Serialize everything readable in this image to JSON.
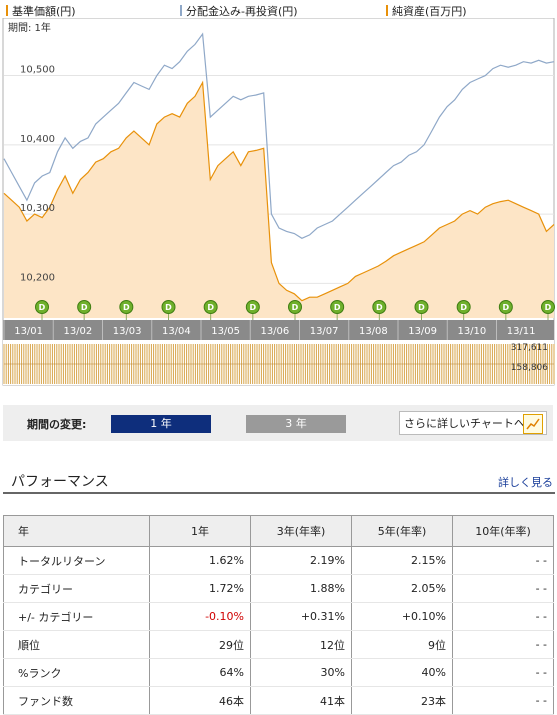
{
  "legend": [
    {
      "label": "基準価額(円)",
      "color": "#e8910a"
    },
    {
      "label": "分配金込み-再投資(円)",
      "color": "#8fa8c8"
    },
    {
      "label": "純資産(百万円)",
      "color": "#e8910a"
    }
  ],
  "chart_data": {
    "type": "line",
    "period_label": "期間: 1年",
    "y_ticks": [
      "10,500",
      "10,400",
      "10,300",
      "10,200"
    ],
    "ylim": [
      10150,
      10560
    ],
    "months": [
      "13/01",
      "13/02",
      "13/03",
      "13/04",
      "13/05",
      "13/06",
      "13/07",
      "13/08",
      "13/09",
      "13/10",
      "13/11"
    ],
    "dividend_marker": "D",
    "dividend_count": 13,
    "series": [
      {
        "name": "基準価額(円)",
        "color": "#e8910a",
        "values": [
          10330,
          10320,
          10310,
          10290,
          10300,
          10295,
          10310,
          10335,
          10355,
          10330,
          10350,
          10360,
          10375,
          10380,
          10390,
          10395,
          10410,
          10420,
          10410,
          10400,
          10430,
          10440,
          10445,
          10440,
          10460,
          10470,
          10490,
          10350,
          10370,
          10380,
          10390,
          10370,
          10390,
          10392,
          10395,
          10230,
          10200,
          10190,
          10185,
          10175,
          10180,
          10180,
          10185,
          10190,
          10195,
          10200,
          10210,
          10215,
          10220,
          10225,
          10232,
          10240,
          10245,
          10250,
          10255,
          10260,
          10270,
          10280,
          10285,
          10290,
          10300,
          10305,
          10300,
          10310,
          10315,
          10318,
          10320,
          10315,
          10310,
          10305,
          10300,
          10275,
          10285
        ]
      },
      {
        "name": "分配金込み-再投資(円)",
        "color": "#8fa8c8",
        "values": [
          10380,
          10360,
          10340,
          10320,
          10345,
          10355,
          10360,
          10390,
          10410,
          10395,
          10405,
          10410,
          10430,
          10440,
          10450,
          10460,
          10475,
          10490,
          10485,
          10480,
          10500,
          10515,
          10510,
          10520,
          10535,
          10545,
          10560,
          10440,
          10450,
          10460,
          10470,
          10465,
          10470,
          10472,
          10475,
          10300,
          10280,
          10275,
          10272,
          10265,
          10270,
          10280,
          10285,
          10290,
          10300,
          10310,
          10320,
          10330,
          10340,
          10350,
          10360,
          10370,
          10375,
          10385,
          10390,
          10400,
          10420,
          10440,
          10455,
          10465,
          10480,
          10490,
          10495,
          10500,
          10510,
          10515,
          10512,
          10515,
          10520,
          10518,
          10522,
          10518,
          10520
        ]
      }
    ],
    "volume_max": "317,611",
    "volume_mid": "158,806"
  },
  "period": {
    "label": "期間の変更:",
    "btn_1y": "1 年",
    "btn_3y": "3 年",
    "detail_link": "さらに詳しいチャートへ"
  },
  "performance": {
    "title": "パフォーマンス",
    "more_link": "詳しく見る",
    "columns": [
      "年",
      "1年",
      "3年(年率)",
      "5年(年率)",
      "10年(年率)"
    ],
    "rows": [
      {
        "label": "トータルリターン",
        "values": [
          "1.62%",
          "2.19%",
          "2.15%",
          "- -"
        ]
      },
      {
        "label": "カテゴリー",
        "values": [
          "1.72%",
          "1.88%",
          "2.05%",
          "- -"
        ]
      },
      {
        "label": "+/- カテゴリー",
        "values": [
          "-0.10%",
          "+0.31%",
          "+0.10%",
          "- -"
        ],
        "neg_first": true
      },
      {
        "label": "順位",
        "values": [
          "29位",
          "12位",
          "9位",
          "- -"
        ]
      },
      {
        "label": "%ランク",
        "values": [
          "64%",
          "30%",
          "40%",
          "- -"
        ]
      },
      {
        "label": "ファンド数",
        "values": [
          "46本",
          "41本",
          "23本",
          "- -"
        ]
      }
    ]
  }
}
